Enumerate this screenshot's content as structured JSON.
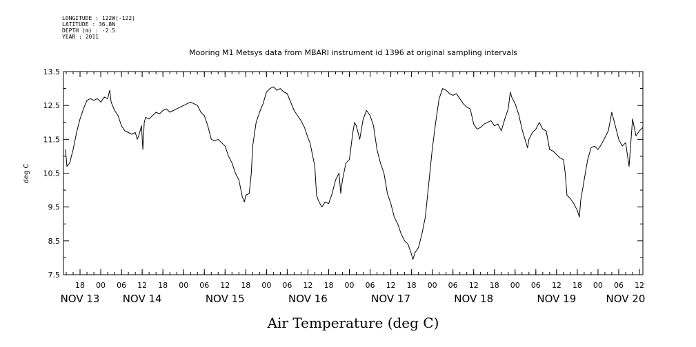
{
  "meta_lines": [
    "LONGITUDE : 122W(-122)",
    "LATITUDE : 36.8N",
    "DEPTH (m) : -2.5",
    "YEAR : 2011"
  ],
  "chart_data": {
    "type": "line",
    "title": "Mooring M1 Metsys data from MBARI instrument id 1396 at original sampling intervals",
    "xlabel": "Air Temperature (deg C)",
    "ylabel": "deg C",
    "ylim": [
      7.5,
      13.5
    ],
    "y_ticks": [
      "7.5",
      "8.5",
      "9.5",
      "10.5",
      "11.5",
      "12.5",
      "13.5"
    ],
    "x_unit": "hours since NOV 13 00:00, 2011",
    "xlim": [
      13.2,
      181
    ],
    "hour_ticks": [
      {
        "h": 18,
        "label": "18"
      },
      {
        "h": 24,
        "label": "00"
      },
      {
        "h": 30,
        "label": "06"
      },
      {
        "h": 36,
        "label": "12"
      },
      {
        "h": 42,
        "label": "18"
      },
      {
        "h": 48,
        "label": "00"
      },
      {
        "h": 54,
        "label": "06"
      },
      {
        "h": 60,
        "label": "12"
      },
      {
        "h": 66,
        "label": "18"
      },
      {
        "h": 72,
        "label": "00"
      },
      {
        "h": 78,
        "label": "06"
      },
      {
        "h": 84,
        "label": "12"
      },
      {
        "h": 90,
        "label": "18"
      },
      {
        "h": 96,
        "label": "00"
      },
      {
        "h": 102,
        "label": "06"
      },
      {
        "h": 108,
        "label": "12"
      },
      {
        "h": 114,
        "label": "18"
      },
      {
        "h": 120,
        "label": "00"
      },
      {
        "h": 126,
        "label": "06"
      },
      {
        "h": 132,
        "label": "12"
      },
      {
        "h": 138,
        "label": "18"
      },
      {
        "h": 144,
        "label": "00"
      },
      {
        "h": 150,
        "label": "06"
      },
      {
        "h": 156,
        "label": "12"
      },
      {
        "h": 162,
        "label": "18"
      },
      {
        "h": 168,
        "label": "00"
      },
      {
        "h": 174,
        "label": "06"
      },
      {
        "h": 180,
        "label": "12"
      }
    ],
    "day_labels": [
      {
        "h": 18,
        "label": "NOV 13"
      },
      {
        "h": 36,
        "label": "NOV 14"
      },
      {
        "h": 60,
        "label": "NOV 15"
      },
      {
        "h": 84,
        "label": "NOV 16"
      },
      {
        "h": 108,
        "label": "NOV 17"
      },
      {
        "h": 132,
        "label": "NOV 18"
      },
      {
        "h": 156,
        "label": "NOV 19"
      },
      {
        "h": 176,
        "label": "NOV 20"
      }
    ],
    "series": [
      {
        "color": "#000000",
        "points": [
          [
            13.8,
            11.2
          ],
          [
            14.2,
            10.7
          ],
          [
            15.0,
            10.8
          ],
          [
            16.0,
            11.2
          ],
          [
            17.0,
            11.7
          ],
          [
            18.0,
            12.1
          ],
          [
            19.0,
            12.4
          ],
          [
            20.0,
            12.65
          ],
          [
            21.0,
            12.7
          ],
          [
            22.0,
            12.65
          ],
          [
            23.0,
            12.7
          ],
          [
            24.0,
            12.6
          ],
          [
            25.0,
            12.75
          ],
          [
            26.0,
            12.7
          ],
          [
            26.6,
            12.95
          ],
          [
            27.0,
            12.6
          ],
          [
            28.0,
            12.35
          ],
          [
            29.0,
            12.2
          ],
          [
            30.0,
            11.9
          ],
          [
            31.0,
            11.75
          ],
          [
            32.0,
            11.7
          ],
          [
            33.0,
            11.65
          ],
          [
            34.0,
            11.7
          ],
          [
            34.6,
            11.5
          ],
          [
            35.0,
            11.6
          ],
          [
            35.8,
            11.9
          ],
          [
            36.2,
            11.2
          ],
          [
            36.6,
            12.0
          ],
          [
            37.0,
            12.15
          ],
          [
            38.0,
            12.1
          ],
          [
            39.0,
            12.2
          ],
          [
            40.0,
            12.3
          ],
          [
            41.0,
            12.25
          ],
          [
            42.0,
            12.35
          ],
          [
            43.0,
            12.4
          ],
          [
            44.0,
            12.3
          ],
          [
            45.0,
            12.35
          ],
          [
            46.0,
            12.4
          ],
          [
            47.0,
            12.45
          ],
          [
            48.0,
            12.5
          ],
          [
            49.0,
            12.55
          ],
          [
            50.0,
            12.6
          ],
          [
            51.0,
            12.55
          ],
          [
            52.0,
            12.5
          ],
          [
            53.0,
            12.3
          ],
          [
            54.0,
            12.2
          ],
          [
            55.0,
            11.9
          ],
          [
            56.0,
            11.5
          ],
          [
            57.0,
            11.45
          ],
          [
            58.0,
            11.5
          ],
          [
            59.0,
            11.4
          ],
          [
            60.0,
            11.3
          ],
          [
            61.0,
            11.0
          ],
          [
            62.0,
            10.8
          ],
          [
            63.0,
            10.5
          ],
          [
            64.0,
            10.3
          ],
          [
            65.0,
            9.8
          ],
          [
            65.6,
            9.65
          ],
          [
            66.0,
            9.85
          ],
          [
            67.0,
            9.9
          ],
          [
            67.6,
            10.5
          ],
          [
            68.0,
            11.3
          ],
          [
            69.0,
            12.0
          ],
          [
            70.0,
            12.3
          ],
          [
            71.0,
            12.55
          ],
          [
            72.0,
            12.9
          ],
          [
            73.0,
            13.0
          ],
          [
            74.0,
            13.05
          ],
          [
            75.0,
            12.95
          ],
          [
            76.0,
            13.0
          ],
          [
            77.0,
            12.9
          ],
          [
            78.0,
            12.85
          ],
          [
            79.0,
            12.6
          ],
          [
            80.0,
            12.35
          ],
          [
            81.0,
            12.2
          ],
          [
            82.0,
            12.05
          ],
          [
            83.0,
            11.85
          ],
          [
            84.0,
            11.55
          ],
          [
            84.6,
            11.4
          ],
          [
            85.0,
            11.2
          ],
          [
            86.0,
            10.7
          ],
          [
            86.5,
            9.85
          ],
          [
            87.0,
            9.7
          ],
          [
            88.0,
            9.5
          ],
          [
            89.0,
            9.65
          ],
          [
            90.0,
            9.6
          ],
          [
            91.0,
            9.9
          ],
          [
            92.0,
            10.3
          ],
          [
            93.0,
            10.5
          ],
          [
            93.5,
            9.9
          ],
          [
            94.0,
            10.3
          ],
          [
            95.0,
            10.8
          ],
          [
            96.0,
            10.9
          ],
          [
            97.0,
            11.7
          ],
          [
            97.5,
            12.0
          ],
          [
            98.0,
            11.9
          ],
          [
            99.0,
            11.5
          ],
          [
            100.0,
            12.1
          ],
          [
            101.0,
            12.35
          ],
          [
            102.0,
            12.2
          ],
          [
            103.0,
            11.9
          ],
          [
            104.0,
            11.2
          ],
          [
            105.0,
            10.8
          ],
          [
            106.0,
            10.5
          ],
          [
            107.0,
            9.9
          ],
          [
            108.0,
            9.6
          ],
          [
            109.0,
            9.2
          ],
          [
            110.0,
            9.0
          ],
          [
            111.0,
            8.7
          ],
          [
            112.0,
            8.5
          ],
          [
            113.0,
            8.4
          ],
          [
            114.0,
            8.1
          ],
          [
            114.4,
            7.95
          ],
          [
            115.0,
            8.15
          ],
          [
            116.0,
            8.3
          ],
          [
            117.0,
            8.7
          ],
          [
            118.0,
            9.2
          ],
          [
            119.0,
            10.2
          ],
          [
            120.0,
            11.2
          ],
          [
            121.0,
            12.0
          ],
          [
            122.0,
            12.7
          ],
          [
            123.0,
            13.0
          ],
          [
            124.0,
            12.95
          ],
          [
            125.0,
            12.85
          ],
          [
            126.0,
            12.8
          ],
          [
            127.0,
            12.85
          ],
          [
            128.0,
            12.7
          ],
          [
            129.0,
            12.55
          ],
          [
            130.0,
            12.45
          ],
          [
            131.0,
            12.4
          ],
          [
            132.0,
            11.95
          ],
          [
            133.0,
            11.8
          ],
          [
            134.0,
            11.85
          ],
          [
            135.0,
            11.95
          ],
          [
            136.0,
            12.0
          ],
          [
            137.0,
            12.05
          ],
          [
            138.0,
            11.9
          ],
          [
            139.0,
            11.95
          ],
          [
            140.0,
            11.75
          ],
          [
            141.0,
            12.1
          ],
          [
            142.0,
            12.4
          ],
          [
            142.6,
            12.9
          ],
          [
            143.0,
            12.75
          ],
          [
            144.0,
            12.55
          ],
          [
            145.0,
            12.25
          ],
          [
            146.0,
            11.8
          ],
          [
            147.0,
            11.45
          ],
          [
            147.6,
            11.25
          ],
          [
            148.0,
            11.5
          ],
          [
            149.0,
            11.7
          ],
          [
            150.0,
            11.8
          ],
          [
            151.0,
            12.0
          ],
          [
            152.0,
            11.8
          ],
          [
            153.0,
            11.75
          ],
          [
            154.0,
            11.2
          ],
          [
            155.0,
            11.15
          ],
          [
            156.0,
            11.05
          ],
          [
            157.0,
            10.95
          ],
          [
            158.0,
            10.9
          ],
          [
            158.5,
            10.5
          ],
          [
            159.0,
            9.85
          ],
          [
            160.0,
            9.75
          ],
          [
            161.0,
            9.6
          ],
          [
            162.0,
            9.4
          ],
          [
            162.6,
            9.2
          ],
          [
            163.0,
            9.7
          ],
          [
            164.0,
            10.3
          ],
          [
            165.0,
            10.9
          ],
          [
            166.0,
            11.25
          ],
          [
            167.0,
            11.3
          ],
          [
            168.0,
            11.2
          ],
          [
            169.0,
            11.35
          ],
          [
            170.0,
            11.55
          ],
          [
            171.0,
            11.75
          ],
          [
            172.0,
            12.3
          ],
          [
            173.0,
            11.9
          ],
          [
            174.0,
            11.5
          ],
          [
            175.0,
            11.3
          ],
          [
            176.0,
            11.4
          ],
          [
            177.0,
            10.7
          ],
          [
            178.0,
            12.1
          ],
          [
            179.0,
            11.6
          ],
          [
            180.0,
            11.75
          ],
          [
            181.0,
            11.85
          ]
        ]
      }
    ]
  }
}
